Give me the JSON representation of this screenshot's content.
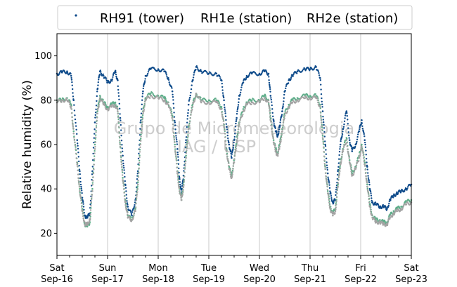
{
  "chart_data": {
    "type": "scatter",
    "ylabel": "Relative humidity (%)",
    "xlabel": "",
    "ylim": [
      10,
      110
    ],
    "xlim": [
      0,
      7
    ],
    "yticks": [
      20,
      40,
      60,
      80,
      100
    ],
    "xticks": [
      {
        "x": 0,
        "day": "Sat",
        "date": "Sep-16"
      },
      {
        "x": 1,
        "day": "Sun",
        "date": "Sep-17"
      },
      {
        "x": 2,
        "day": "Mon",
        "date": "Sep-18"
      },
      {
        "x": 3,
        "day": "Tue",
        "date": "Sep-19"
      },
      {
        "x": 4,
        "day": "Wed",
        "date": "Sep-20"
      },
      {
        "x": 5,
        "day": "Thu",
        "date": "Sep-21"
      },
      {
        "x": 6,
        "day": "Fri",
        "date": "Sep-22"
      },
      {
        "x": 7,
        "day": "Sat",
        "date": "Sep-23"
      }
    ],
    "grid": "vertical",
    "legend_position": "top",
    "watermark": [
      "Grupo de Micrometeorologia",
      "IAG / USP"
    ],
    "series": [
      {
        "name": "RH91 (tower)",
        "color": "#0d4a8a",
        "points": [
          [
            0,
            92
          ],
          [
            0.1,
            92.5
          ],
          [
            0.2,
            93
          ],
          [
            0.28,
            91
          ],
          [
            0.33,
            80
          ],
          [
            0.4,
            62
          ],
          [
            0.45,
            48
          ],
          [
            0.5,
            36
          ],
          [
            0.55,
            28
          ],
          [
            0.6,
            27
          ],
          [
            0.65,
            29
          ],
          [
            0.7,
            48
          ],
          [
            0.75,
            70
          ],
          [
            0.8,
            85
          ],
          [
            0.85,
            93
          ],
          [
            0.92,
            91
          ],
          [
            1.0,
            88
          ],
          [
            1.08,
            89
          ],
          [
            1.15,
            93
          ],
          [
            1.2,
            89
          ],
          [
            1.25,
            72
          ],
          [
            1.3,
            55
          ],
          [
            1.35,
            42
          ],
          [
            1.4,
            32
          ],
          [
            1.48,
            28
          ],
          [
            1.55,
            35
          ],
          [
            1.6,
            48
          ],
          [
            1.65,
            70
          ],
          [
            1.7,
            84
          ],
          [
            1.75,
            91
          ],
          [
            1.85,
            94
          ],
          [
            2.0,
            94
          ],
          [
            2.12,
            93
          ],
          [
            2.2,
            90
          ],
          [
            2.28,
            84
          ],
          [
            2.33,
            70
          ],
          [
            2.38,
            58
          ],
          [
            2.42,
            45
          ],
          [
            2.46,
            38
          ],
          [
            2.5,
            46
          ],
          [
            2.55,
            62
          ],
          [
            2.6,
            78
          ],
          [
            2.68,
            89
          ],
          [
            2.75,
            95
          ],
          [
            2.85,
            93
          ],
          [
            3.0,
            92
          ],
          [
            3.15,
            92
          ],
          [
            3.25,
            89
          ],
          [
            3.3,
            80
          ],
          [
            3.35,
            68
          ],
          [
            3.4,
            60
          ],
          [
            3.45,
            54
          ],
          [
            3.5,
            62
          ],
          [
            3.55,
            72
          ],
          [
            3.6,
            82
          ],
          [
            3.68,
            88
          ],
          [
            3.75,
            91
          ],
          [
            3.85,
            92
          ],
          [
            4.0,
            92
          ],
          [
            4.1,
            93
          ],
          [
            4.18,
            92
          ],
          [
            4.22,
            82
          ],
          [
            4.28,
            71
          ],
          [
            4.32,
            66
          ],
          [
            4.36,
            64
          ],
          [
            4.4,
            68
          ],
          [
            4.45,
            75
          ],
          [
            4.5,
            84
          ],
          [
            4.58,
            89
          ],
          [
            4.65,
            91
          ],
          [
            4.75,
            93
          ],
          [
            4.9,
            94
          ],
          [
            5.0,
            94
          ],
          [
            5.12,
            95
          ],
          [
            5.2,
            90
          ],
          [
            5.25,
            75
          ],
          [
            5.3,
            60
          ],
          [
            5.35,
            47
          ],
          [
            5.4,
            38
          ],
          [
            5.45,
            34
          ],
          [
            5.5,
            35
          ],
          [
            5.55,
            48
          ],
          [
            5.6,
            60
          ],
          [
            5.65,
            67
          ],
          [
            5.72,
            75
          ],
          [
            5.78,
            62
          ],
          [
            5.83,
            57
          ],
          [
            5.9,
            60
          ],
          [
            5.97,
            66
          ],
          [
            6.02,
            71
          ],
          [
            6.08,
            62
          ],
          [
            6.13,
            50
          ],
          [
            6.18,
            40
          ],
          [
            6.23,
            34
          ],
          [
            6.3,
            33
          ],
          [
            6.38,
            32
          ],
          [
            6.45,
            32
          ],
          [
            6.52,
            31
          ],
          [
            6.58,
            35
          ],
          [
            6.65,
            37
          ],
          [
            6.72,
            38
          ],
          [
            6.8,
            39
          ],
          [
            6.9,
            40
          ],
          [
            7.0,
            42
          ]
        ]
      },
      {
        "name": "RH1e (station)",
        "color": "#5fae8a",
        "points": [
          [
            0,
            80
          ],
          [
            0.1,
            80
          ],
          [
            0.2,
            81
          ],
          [
            0.28,
            78
          ],
          [
            0.33,
            66
          ],
          [
            0.4,
            52
          ],
          [
            0.45,
            40
          ],
          [
            0.5,
            31
          ],
          [
            0.55,
            24
          ],
          [
            0.6,
            23
          ],
          [
            0.65,
            25
          ],
          [
            0.7,
            40
          ],
          [
            0.75,
            60
          ],
          [
            0.8,
            75
          ],
          [
            0.85,
            82
          ],
          [
            0.92,
            79
          ],
          [
            1.0,
            77
          ],
          [
            1.08,
            78
          ],
          [
            1.15,
            79
          ],
          [
            1.2,
            76
          ],
          [
            1.25,
            60
          ],
          [
            1.3,
            45
          ],
          [
            1.35,
            35
          ],
          [
            1.4,
            28
          ],
          [
            1.48,
            26
          ],
          [
            1.55,
            31
          ],
          [
            1.6,
            43
          ],
          [
            1.65,
            62
          ],
          [
            1.7,
            75
          ],
          [
            1.75,
            81
          ],
          [
            1.85,
            83
          ],
          [
            2.0,
            82
          ],
          [
            2.12,
            81
          ],
          [
            2.2,
            79
          ],
          [
            2.28,
            73
          ],
          [
            2.33,
            60
          ],
          [
            2.38,
            48
          ],
          [
            2.42,
            40
          ],
          [
            2.46,
            35
          ],
          [
            2.5,
            42
          ],
          [
            2.55,
            55
          ],
          [
            2.6,
            68
          ],
          [
            2.68,
            78
          ],
          [
            2.75,
            83
          ],
          [
            2.85,
            80
          ],
          [
            3.0,
            80
          ],
          [
            3.15,
            80
          ],
          [
            3.25,
            77
          ],
          [
            3.3,
            69
          ],
          [
            3.35,
            58
          ],
          [
            3.4,
            50
          ],
          [
            3.45,
            46
          ],
          [
            3.5,
            53
          ],
          [
            3.55,
            62
          ],
          [
            3.6,
            70
          ],
          [
            3.68,
            76
          ],
          [
            3.75,
            79
          ],
          [
            3.85,
            80
          ],
          [
            4.0,
            80
          ],
          [
            4.1,
            82
          ],
          [
            4.18,
            80
          ],
          [
            4.22,
            72
          ],
          [
            4.28,
            62
          ],
          [
            4.32,
            58
          ],
          [
            4.36,
            56
          ],
          [
            4.4,
            60
          ],
          [
            4.45,
            67
          ],
          [
            4.5,
            74
          ],
          [
            4.58,
            78
          ],
          [
            4.65,
            80
          ],
          [
            4.75,
            81
          ],
          [
            4.9,
            82
          ],
          [
            5.0,
            82
          ],
          [
            5.12,
            82
          ],
          [
            5.2,
            78
          ],
          [
            5.25,
            64
          ],
          [
            5.3,
            50
          ],
          [
            5.35,
            39
          ],
          [
            5.4,
            32
          ],
          [
            5.45,
            29
          ],
          [
            5.5,
            31
          ],
          [
            5.55,
            42
          ],
          [
            5.6,
            52
          ],
          [
            5.65,
            58
          ],
          [
            5.72,
            63
          ],
          [
            5.78,
            53
          ],
          [
            5.83,
            47
          ],
          [
            5.9,
            50
          ],
          [
            5.97,
            55
          ],
          [
            6.02,
            60
          ],
          [
            6.08,
            52
          ],
          [
            6.13,
            42
          ],
          [
            6.18,
            33
          ],
          [
            6.23,
            28
          ],
          [
            6.3,
            26
          ],
          [
            6.38,
            26
          ],
          [
            6.45,
            25
          ],
          [
            6.52,
            25
          ],
          [
            6.58,
            28
          ],
          [
            6.65,
            30
          ],
          [
            6.72,
            31
          ],
          [
            6.8,
            32
          ],
          [
            6.9,
            34
          ],
          [
            7.0,
            35
          ]
        ]
      },
      {
        "name": "RH2e (station)",
        "color": "#a3a3a3",
        "points": [
          [
            0,
            79
          ],
          [
            0.1,
            80
          ],
          [
            0.2,
            80
          ],
          [
            0.28,
            77
          ],
          [
            0.33,
            65
          ],
          [
            0.4,
            51
          ],
          [
            0.45,
            39
          ],
          [
            0.5,
            30
          ],
          [
            0.55,
            24
          ],
          [
            0.6,
            24
          ],
          [
            0.65,
            26
          ],
          [
            0.7,
            39
          ],
          [
            0.75,
            58
          ],
          [
            0.8,
            74
          ],
          [
            0.85,
            81
          ],
          [
            0.92,
            78
          ],
          [
            1.0,
            76
          ],
          [
            1.08,
            77
          ],
          [
            1.15,
            78
          ],
          [
            1.2,
            75
          ],
          [
            1.25,
            59
          ],
          [
            1.3,
            44
          ],
          [
            1.35,
            34
          ],
          [
            1.4,
            27
          ],
          [
            1.48,
            26
          ],
          [
            1.55,
            30
          ],
          [
            1.6,
            42
          ],
          [
            1.65,
            60
          ],
          [
            1.7,
            74
          ],
          [
            1.75,
            80
          ],
          [
            1.85,
            82
          ],
          [
            2.0,
            81
          ],
          [
            2.12,
            80
          ],
          [
            2.2,
            78
          ],
          [
            2.28,
            72
          ],
          [
            2.33,
            59
          ],
          [
            2.38,
            47
          ],
          [
            2.42,
            39
          ],
          [
            2.46,
            35
          ],
          [
            2.5,
            41
          ],
          [
            2.55,
            54
          ],
          [
            2.6,
            67
          ],
          [
            2.68,
            77
          ],
          [
            2.75,
            83
          ],
          [
            2.85,
            79
          ],
          [
            3.0,
            79
          ],
          [
            3.15,
            79
          ],
          [
            3.25,
            76
          ],
          [
            3.3,
            68
          ],
          [
            3.35,
            57
          ],
          [
            3.4,
            49
          ],
          [
            3.45,
            45
          ],
          [
            3.5,
            52
          ],
          [
            3.55,
            61
          ],
          [
            3.6,
            69
          ],
          [
            3.68,
            75
          ],
          [
            3.75,
            78
          ],
          [
            3.85,
            79
          ],
          [
            4.0,
            79
          ],
          [
            4.1,
            81
          ],
          [
            4.18,
            79
          ],
          [
            4.22,
            71
          ],
          [
            4.28,
            61
          ],
          [
            4.32,
            57
          ],
          [
            4.36,
            55
          ],
          [
            4.4,
            59
          ],
          [
            4.45,
            66
          ],
          [
            4.5,
            73
          ],
          [
            4.58,
            77
          ],
          [
            4.65,
            79
          ],
          [
            4.75,
            80
          ],
          [
            4.9,
            81
          ],
          [
            5.0,
            81
          ],
          [
            5.12,
            81
          ],
          [
            5.2,
            77
          ],
          [
            5.25,
            63
          ],
          [
            5.3,
            49
          ],
          [
            5.35,
            38
          ],
          [
            5.4,
            31
          ],
          [
            5.45,
            28
          ],
          [
            5.5,
            30
          ],
          [
            5.55,
            41
          ],
          [
            5.6,
            51
          ],
          [
            5.65,
            57
          ],
          [
            5.72,
            62
          ],
          [
            5.78,
            52
          ],
          [
            5.83,
            46
          ],
          [
            5.9,
            49
          ],
          [
            5.97,
            54
          ],
          [
            6.02,
            59
          ],
          [
            6.08,
            51
          ],
          [
            6.13,
            41
          ],
          [
            6.18,
            32
          ],
          [
            6.23,
            27
          ],
          [
            6.3,
            25
          ],
          [
            6.38,
            25
          ],
          [
            6.45,
            24
          ],
          [
            6.52,
            24
          ],
          [
            6.58,
            27
          ],
          [
            6.65,
            29
          ],
          [
            6.72,
            30
          ],
          [
            6.8,
            31
          ],
          [
            6.9,
            33
          ],
          [
            7.0,
            34
          ]
        ]
      }
    ]
  }
}
